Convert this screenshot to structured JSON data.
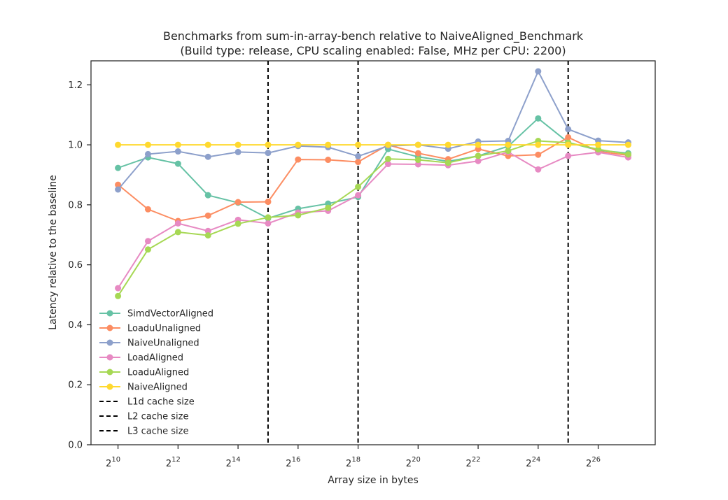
{
  "chart_data": {
    "type": "line",
    "title": "Benchmarks from sum-in-array-bench relative to NaiveAligned_Benchmark",
    "subtitle": "(Build type: release, CPU scaling enabled: False, MHz per CPU: 2200)",
    "xlabel": "Array size in bytes",
    "ylabel": "Latency relative to the baseline",
    "x_scale": "log2",
    "x_exponents": [
      10,
      11,
      12,
      13,
      14,
      15,
      16,
      17,
      18,
      19,
      20,
      21,
      22,
      23,
      24,
      25,
      26,
      27
    ],
    "xlim_exponent": [
      9.1,
      27.9
    ],
    "ylim": [
      0.0,
      1.28
    ],
    "x_ticks": [
      {
        "exponent": 10,
        "base": "2",
        "exp": "10"
      },
      {
        "exponent": 12,
        "base": "2",
        "exp": "12"
      },
      {
        "exponent": 14,
        "base": "2",
        "exp": "14"
      },
      {
        "exponent": 16,
        "base": "2",
        "exp": "16"
      },
      {
        "exponent": 18,
        "base": "2",
        "exp": "18"
      },
      {
        "exponent": 20,
        "base": "2",
        "exp": "20"
      },
      {
        "exponent": 22,
        "base": "2",
        "exp": "22"
      },
      {
        "exponent": 24,
        "base": "2",
        "exp": "24"
      },
      {
        "exponent": 26,
        "base": "2",
        "exp": "26"
      }
    ],
    "y_ticks": [
      {
        "value": 0.0,
        "label": "0.0"
      },
      {
        "value": 0.2,
        "label": "0.2"
      },
      {
        "value": 0.4,
        "label": "0.4"
      },
      {
        "value": 0.6,
        "label": "0.6"
      },
      {
        "value": 0.8,
        "label": "0.8"
      },
      {
        "value": 1.0,
        "label": "1.0"
      },
      {
        "value": 1.2,
        "label": "1.2"
      }
    ],
    "grid": false,
    "legend_position": "lower-left",
    "series": [
      {
        "name": "SimdVectorAligned",
        "color": "#66c2a5",
        "values": [
          0.923,
          0.958,
          0.937,
          0.832,
          0.807,
          0.755,
          0.787,
          0.804,
          0.826,
          0.986,
          0.96,
          0.945,
          0.963,
          0.995,
          1.088,
          1.008,
          0.982,
          0.972
        ]
      },
      {
        "name": "LoaduUnaligned",
        "color": "#fc8d62",
        "values": [
          0.867,
          0.785,
          0.746,
          0.764,
          0.809,
          0.81,
          0.951,
          0.95,
          0.943,
          1.0,
          0.972,
          0.952,
          0.986,
          0.963,
          0.967,
          1.025,
          0.978,
          0.965
        ]
      },
      {
        "name": "NaiveUnaligned",
        "color": "#8da0cb",
        "values": [
          0.851,
          0.969,
          0.978,
          0.96,
          0.976,
          0.973,
          0.996,
          0.992,
          0.962,
          0.996,
          1.0,
          0.987,
          1.011,
          1.013,
          1.245,
          1.052,
          1.014,
          1.008
        ]
      },
      {
        "name": "LoadAligned",
        "color": "#e78ac3",
        "values": [
          0.522,
          0.679,
          0.738,
          0.713,
          0.75,
          0.738,
          0.774,
          0.78,
          0.832,
          0.936,
          0.935,
          0.932,
          0.946,
          0.976,
          0.918,
          0.963,
          0.975,
          0.958
        ]
      },
      {
        "name": "LoaduAligned",
        "color": "#a6d854",
        "values": [
          0.496,
          0.651,
          0.709,
          0.698,
          0.737,
          0.758,
          0.765,
          0.79,
          0.86,
          0.953,
          0.95,
          0.94,
          0.963,
          0.98,
          1.013,
          1.007,
          0.985,
          0.968
        ]
      },
      {
        "name": "NaiveAligned",
        "color": "#ffd92f",
        "values": [
          1.0,
          1.0,
          1.0,
          1.0,
          1.0,
          1.0,
          1.0,
          1.0,
          1.0,
          1.0,
          1.0,
          1.0,
          1.0,
          1.0,
          1.0,
          1.0,
          1.0,
          1.0
        ]
      }
    ],
    "vlines": [
      {
        "name": "L1d cache size",
        "exponent": 15,
        "color": "#000000"
      },
      {
        "name": "L2 cache size",
        "exponent": 18,
        "color": "#000000"
      },
      {
        "name": "L3 cache size",
        "exponent": 25,
        "color": "#000000"
      }
    ]
  }
}
